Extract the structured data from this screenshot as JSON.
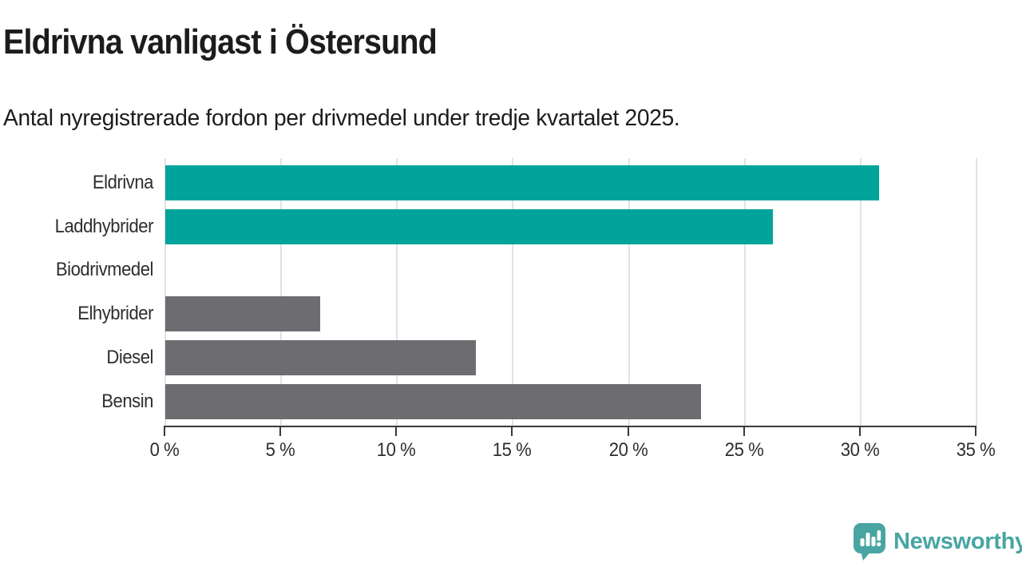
{
  "header": {
    "title": "Eldrivna vanligast i Östersund",
    "subtitle": "Antal nyregistrerade fordon per drivmedel under tredje kvartalet 2025."
  },
  "chart_data": {
    "type": "bar",
    "orientation": "horizontal",
    "title": "Eldrivna vanligast i Östersund",
    "subtitle": "Antal nyregistrerade fordon per drivmedel under tredje kvartalet 2025.",
    "categories": [
      "Eldrivna",
      "Laddhybrider",
      "Biodrivmedel",
      "Elhybrider",
      "Diesel",
      "Bensin"
    ],
    "values": [
      30.8,
      26.2,
      0,
      6.7,
      13.4,
      23.1
    ],
    "unit": "%",
    "xlabel": "",
    "ylabel": "",
    "xlim": [
      0,
      35
    ],
    "x_tick_values": [
      0,
      5,
      10,
      15,
      20,
      25,
      30,
      35
    ],
    "x_tick_labels": [
      "0 %",
      "5 %",
      "10 %",
      "15 %",
      "20 %",
      "25 %",
      "30 %",
      "35 %"
    ],
    "grid": "vertical",
    "legend": "none",
    "highlight_categories": [
      "Eldrivna",
      "Laddhybrider"
    ],
    "colors": {
      "highlight": "#00a49b",
      "default": "#6c6c71"
    }
  },
  "footer": {
    "brand": "Newsworthy",
    "brand_color": "#48a5a2",
    "logo_icon": "newsworthy-speech-bubble-bar-chart-icon"
  }
}
